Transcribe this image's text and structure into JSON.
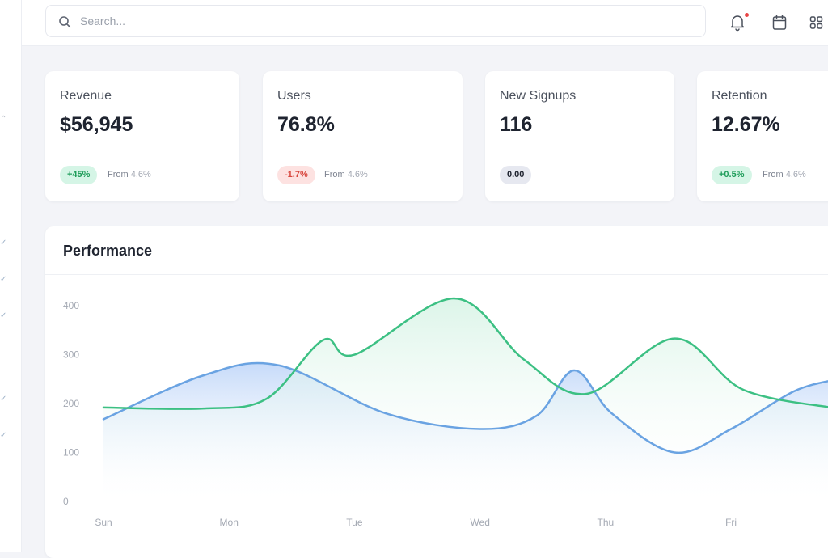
{
  "search": {
    "placeholder": "Search..."
  },
  "cards": [
    {
      "title": "Revenue",
      "value": "$56,945",
      "badge": "+45%",
      "trend": "up",
      "from_label": "From",
      "from_value": "4.6%"
    },
    {
      "title": "Users",
      "value": "76.8%",
      "badge": "-1.7%",
      "trend": "down",
      "from_label": "From",
      "from_value": "4.6%"
    },
    {
      "title": "New Signups",
      "value": "116",
      "badge": "0.00",
      "trend": "flat"
    },
    {
      "title": "Retention",
      "value": "12.67%",
      "badge": "+0.5%",
      "trend": "up",
      "from_label": "From",
      "from_value": "4.6%"
    }
  ],
  "colors": {
    "blue_series": "#6aa3e2",
    "green_series": "#3cc083",
    "badge_up": "#1f9d5a",
    "badge_down": "#d8473e",
    "notification_dot": "#e84545"
  },
  "icons": [
    "search-icon",
    "bell-icon",
    "calendar-icon",
    "apps-grid-icon"
  ],
  "performance": {
    "title": "Performance",
    "chart_data": {
      "type": "area",
      "categories": [
        "Sun",
        "Mon",
        "Tue",
        "Wed",
        "Thu",
        "Fri"
      ],
      "y_ticks": [
        0,
        100,
        200,
        300,
        400
      ],
      "ylim": [
        0,
        430
      ],
      "xlim": [
        0,
        5.85
      ],
      "grid": false,
      "series": [
        {
          "color": "#6aa3e2",
          "points": [
            [
              0,
              168
            ],
            [
              0.8,
              258
            ],
            [
              1.4,
              278
            ],
            [
              2.25,
              180
            ],
            [
              3.0,
              148
            ],
            [
              3.45,
              175
            ],
            [
              3.75,
              268
            ],
            [
              4.05,
              180
            ],
            [
              4.55,
              100
            ],
            [
              5.0,
              148
            ],
            [
              5.5,
              225
            ],
            [
              5.85,
              250
            ]
          ]
        },
        {
          "color": "#3cc083",
          "points": [
            [
              0,
              192
            ],
            [
              0.8,
              190
            ],
            [
              1.3,
              210
            ],
            [
              1.75,
              330
            ],
            [
              2.0,
              300
            ],
            [
              2.8,
              415
            ],
            [
              3.35,
              290
            ],
            [
              3.85,
              220
            ],
            [
              4.55,
              333
            ],
            [
              5.1,
              228
            ],
            [
              5.85,
              190
            ]
          ]
        }
      ]
    }
  }
}
